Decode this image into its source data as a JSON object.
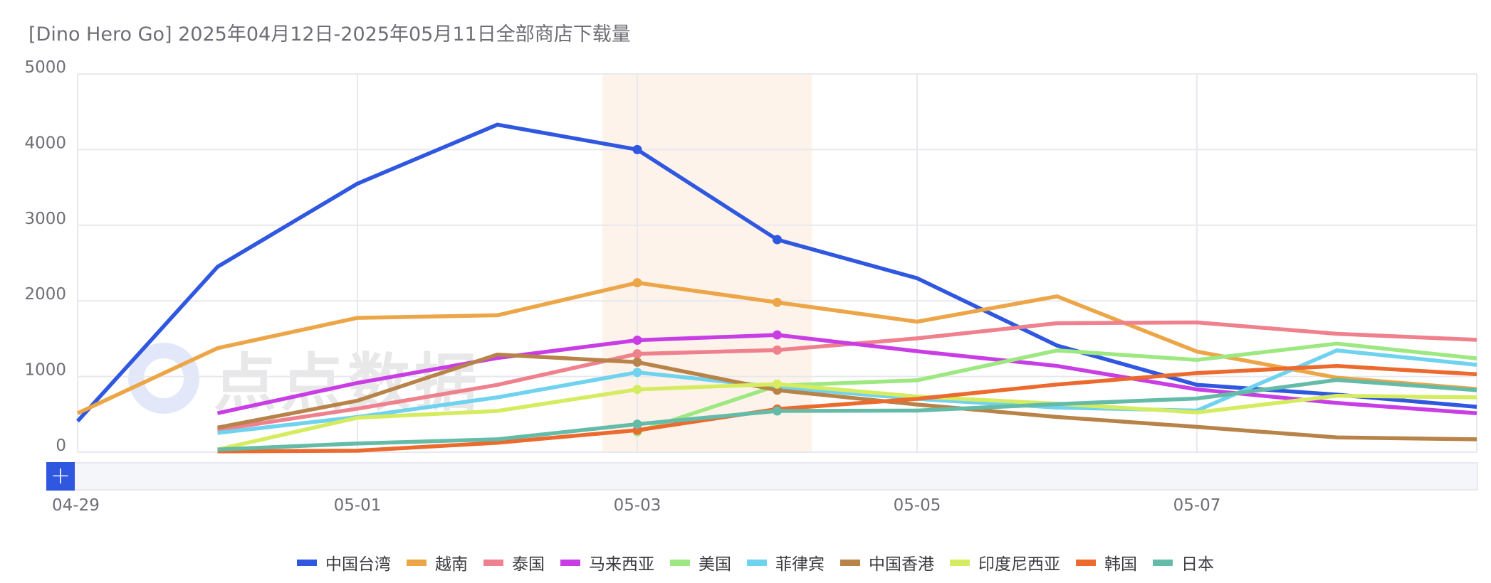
{
  "title": "[Dino Hero Go] 2025年04月12日-2025年05月11日全部商店下载量",
  "watermark": "点点数据",
  "zoom_button": "+",
  "chart_data": {
    "type": "line",
    "title": "[Dino Hero Go] 2025年04月12日-2025年05月11日全部商店下载量",
    "xlabel": "",
    "ylabel": "",
    "ylim": [
      0,
      5000
    ],
    "yticks": [
      0,
      1000,
      2000,
      3000,
      4000,
      5000
    ],
    "x": [
      "04-29",
      "04-30",
      "05-01",
      "05-02",
      "05-03",
      "05-04",
      "05-05",
      "05-06",
      "05-07",
      "05-08",
      "05-09"
    ],
    "xtick_labels": [
      "04-29",
      "05-01",
      "05-03",
      "05-05",
      "05-07"
    ],
    "grid": true,
    "legend_position": "bottom",
    "highlight_range": [
      "05-03",
      "05-04"
    ],
    "series": [
      {
        "name": "中国台湾",
        "color": "#2f57e0",
        "values": [
          410,
          2450,
          3550,
          4330,
          4000,
          2810,
          2300,
          1410,
          890,
          760,
          600
        ]
      },
      {
        "name": "越南",
        "color": "#eca547",
        "values": [
          515,
          1375,
          1775,
          1810,
          2240,
          1980,
          1725,
          2060,
          1330,
          985,
          835
        ]
      },
      {
        "name": "泰国",
        "color": "#ef808d",
        "values": [
          null,
          295,
          575,
          890,
          1300,
          1350,
          1505,
          1705,
          1715,
          1565,
          1485
        ]
      },
      {
        "name": "马来西亚",
        "color": "#c93ee4",
        "values": [
          null,
          515,
          915,
          1245,
          1480,
          1550,
          1335,
          1140,
          830,
          650,
          515
        ]
      },
      {
        "name": "美国",
        "color": "#9ee882",
        "values": [
          null,
          null,
          null,
          null,
          270,
          880,
          950,
          1345,
          1220,
          1435,
          1240
        ]
      },
      {
        "name": "菲律宾",
        "color": "#6fd2ef",
        "values": [
          null,
          255,
          465,
          725,
          1055,
          860,
          705,
          590,
          550,
          1345,
          1155
        ]
      },
      {
        "name": "中国香港",
        "color": "#b88348",
        "values": [
          null,
          325,
          680,
          1290,
          1190,
          820,
          630,
          465,
          335,
          195,
          170
        ]
      },
      {
        "name": "印度尼西亚",
        "color": "#d6ec60",
        "values": [
          null,
          35,
          455,
          545,
          830,
          900,
          735,
          640,
          525,
          745,
          725
        ]
      },
      {
        "name": "韩国",
        "color": "#ec6a2e",
        "values": [
          null,
          10,
          20,
          125,
          290,
          570,
          705,
          895,
          1045,
          1140,
          1030
        ]
      },
      {
        "name": "日本",
        "color": "#64bba7",
        "values": [
          null,
          35,
          115,
          170,
          370,
          545,
          550,
          635,
          710,
          955,
          820
        ]
      }
    ]
  }
}
